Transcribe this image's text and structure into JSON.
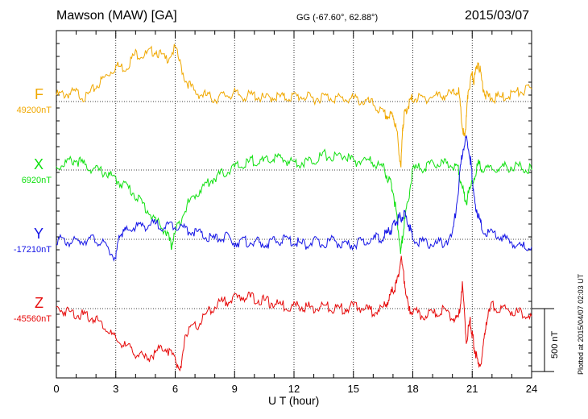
{
  "header": {
    "station": "Mawson (MAW)  [GA]",
    "coords": "GG (-67.60°,  62.88°)",
    "date": "2015/03/07"
  },
  "footer": {
    "plotted": "Plotted at 2015/04/07 02:03 UT"
  },
  "chart_data": {
    "type": "line",
    "xlabel": "U T (hour)",
    "xlim": [
      0,
      24
    ],
    "xticks": [
      0,
      3,
      6,
      9,
      12,
      15,
      18,
      21,
      24
    ],
    "grid": true,
    "scale_bar": {
      "label": "500 nT",
      "value_nT": 500
    },
    "series": [
      {
        "name": "F",
        "baseline_label": "49200nT",
        "baseline_nT": 49200,
        "color": "#f0a800",
        "x": [
          0,
          0.5,
          1,
          1.5,
          2,
          2.5,
          3,
          3.5,
          4,
          4.5,
          5,
          5.5,
          6,
          6.5,
          7,
          7.5,
          8,
          8.5,
          9,
          9.5,
          10,
          10.5,
          11,
          11.5,
          12,
          12.5,
          13,
          13.5,
          14,
          14.5,
          15,
          15.5,
          16,
          16.5,
          16.8,
          17,
          17.2,
          17.4,
          17.5,
          17.6,
          17.8,
          18,
          18.5,
          19,
          19.5,
          20,
          20.3,
          20.5,
          20.6,
          20.7,
          20.8,
          21,
          21.1,
          21.3,
          21.5,
          21.7,
          22,
          22.5,
          23,
          23.5,
          24
        ],
        "y": [
          50,
          60,
          70,
          30,
          120,
          200,
          280,
          270,
          380,
          370,
          410,
          330,
          420,
          180,
          70,
          50,
          20,
          50,
          60,
          40,
          50,
          20,
          40,
          30,
          40,
          40,
          20,
          40,
          30,
          20,
          20,
          0,
          -20,
          -100,
          -120,
          -100,
          -250,
          -520,
          -180,
          -90,
          -20,
          30,
          20,
          40,
          50,
          60,
          100,
          -200,
          -300,
          -150,
          100,
          200,
          170,
          330,
          150,
          40,
          30,
          30,
          60,
          80,
          100
        ]
      },
      {
        "name": "X",
        "baseline_label": "6920nT",
        "baseline_nT": 6920,
        "color": "#10e010",
        "x": [
          0,
          0.5,
          1,
          1.5,
          2,
          2.5,
          3,
          3.5,
          4,
          4.5,
          5,
          5.5,
          5.8,
          6,
          6.5,
          7,
          7.5,
          8,
          8.5,
          9,
          9.5,
          10,
          10.5,
          11,
          11.5,
          12,
          12.5,
          13,
          13.5,
          14,
          14.5,
          15,
          15.5,
          16,
          16.5,
          16.8,
          17,
          17.2,
          17.4,
          17.5,
          17.7,
          18,
          18.5,
          19,
          19.5,
          20,
          20.3,
          20.5,
          20.7,
          21,
          21.3,
          21.5,
          22,
          22.5,
          23,
          23.5,
          24
        ],
        "y": [
          20,
          60,
          80,
          30,
          0,
          -20,
          -80,
          -120,
          -200,
          -300,
          -400,
          -480,
          -600,
          -500,
          -300,
          -200,
          -120,
          -60,
          -20,
          20,
          40,
          80,
          60,
          100,
          80,
          60,
          60,
          80,
          120,
          100,
          120,
          60,
          80,
          60,
          20,
          -80,
          -150,
          -400,
          -650,
          -500,
          -300,
          0,
          20,
          40,
          50,
          40,
          20,
          -150,
          -250,
          -100,
          50,
          0,
          0,
          20,
          30,
          20,
          0
        ]
      },
      {
        "name": "Y",
        "baseline_label": "-17210nT",
        "baseline_nT": -17210,
        "color": "#1414e6",
        "x": [
          0,
          0.5,
          1,
          1.5,
          2,
          2.5,
          3,
          3.2,
          3.5,
          4,
          4.5,
          5,
          5.5,
          6,
          6.5,
          7,
          7.5,
          8,
          8.5,
          9,
          9.5,
          10,
          10.5,
          11,
          11.5,
          12,
          12.5,
          13,
          13.5,
          14,
          14.5,
          15,
          15.5,
          16,
          16.5,
          16.8,
          17,
          17.2,
          17.4,
          17.6,
          17.8,
          18,
          18.5,
          19,
          19.5,
          20,
          20.3,
          20.5,
          20.7,
          20.9,
          21,
          21.1,
          21.3,
          21.5,
          22,
          22.5,
          23,
          23.5,
          24
        ],
        "y": [
          0,
          -20,
          -20,
          0,
          0,
          -60,
          -150,
          40,
          60,
          100,
          110,
          120,
          100,
          120,
          80,
          60,
          20,
          0,
          20,
          -20,
          -20,
          -20,
          -40,
          -20,
          0,
          -20,
          -40,
          -20,
          -40,
          0,
          -60,
          -40,
          -20,
          0,
          20,
          60,
          100,
          150,
          180,
          200,
          120,
          0,
          -20,
          -40,
          -30,
          20,
          400,
          700,
          800,
          650,
          500,
          300,
          200,
          80,
          40,
          20,
          -20,
          -60,
          -60
        ]
      },
      {
        "name": "Z",
        "baseline_label": "-45560nT",
        "baseline_nT": -45560,
        "color": "#e60a0a",
        "x": [
          0,
          0.5,
          1,
          1.5,
          2,
          2.5,
          3,
          3.5,
          4,
          4.5,
          5,
          5.5,
          6,
          6.3,
          6.5,
          7,
          7.5,
          8,
          8.5,
          9,
          9.5,
          10,
          10.5,
          11,
          11.5,
          12,
          12.5,
          13,
          13.5,
          14,
          14.5,
          15,
          15.5,
          16,
          16.5,
          16.8,
          17,
          17.2,
          17.4,
          17.6,
          17.8,
          18,
          18.5,
          19,
          19.5,
          20,
          20.3,
          20.5,
          20.7,
          20.9,
          21,
          21.1,
          21.3,
          21.5,
          21.7,
          22,
          22.5,
          23,
          23.5,
          24
        ],
        "y": [
          0,
          -20,
          -40,
          -60,
          -80,
          -150,
          -250,
          -300,
          -350,
          -400,
          -350,
          -300,
          -400,
          -500,
          -200,
          -150,
          -60,
          20,
          60,
          80,
          100,
          80,
          60,
          40,
          20,
          20,
          20,
          0,
          20,
          0,
          0,
          20,
          0,
          -20,
          0,
          80,
          150,
          200,
          400,
          200,
          -20,
          -20,
          -60,
          -40,
          -20,
          -60,
          -100,
          200,
          -250,
          -100,
          -200,
          -300,
          -450,
          -400,
          -100,
          20,
          0,
          -20,
          -40,
          -60
        ]
      }
    ]
  }
}
